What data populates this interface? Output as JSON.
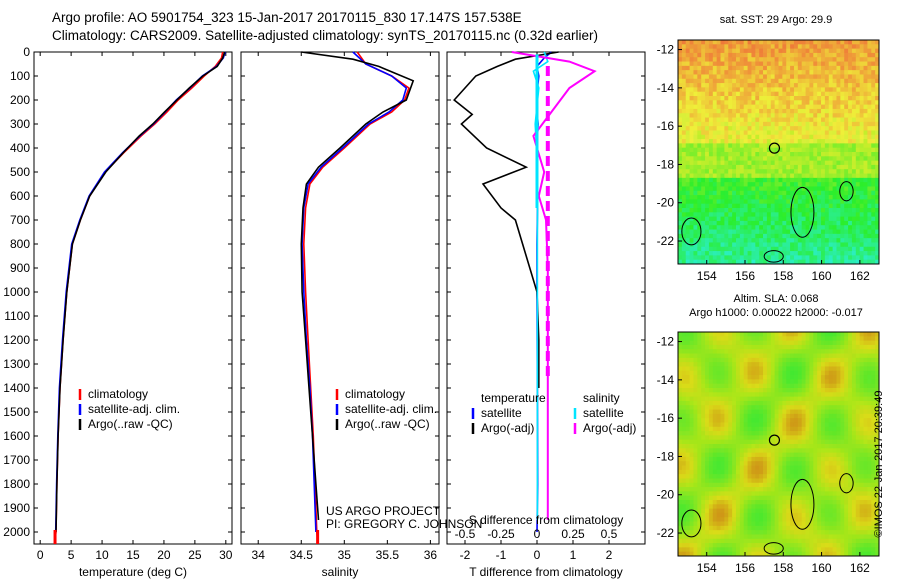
{
  "header": {
    "line1": "Argo profile: AO 5901754_323 15-Jan-2017 20170115_830 17.147S 157.538E",
    "line2": "Climatology: CARS2009. Satellite-adjusted climatology: synTS_20170115.nc (0.32d earlier)"
  },
  "colors": {
    "climatology": "#ff0000",
    "satellite": "#0000ff",
    "argo": "#000000",
    "sat_salinity": "#00e5ff",
    "argo_salinity": "#ff00ff"
  },
  "chart_data": [
    {
      "type": "line",
      "xlabel": "temperature (deg C)",
      "xlim": [
        -1,
        31
      ],
      "ylim": [
        2050,
        0
      ],
      "xticks": [
        0,
        5,
        10,
        15,
        20,
        25,
        30
      ],
      "yticks": [
        0,
        100,
        200,
        300,
        400,
        500,
        600,
        700,
        800,
        900,
        1000,
        1100,
        1200,
        1300,
        1400,
        1500,
        1600,
        1700,
        1800,
        1900,
        2000
      ],
      "legend": [
        "climatology",
        "satellite-adj. clim.",
        "Argo(..raw -QC)"
      ],
      "legend_position": "lower-right",
      "series": [
        {
          "name": "climatology",
          "color": "#ff0000",
          "x": [
            29.5,
            29.3,
            28.3,
            26.5,
            24.5,
            22.3,
            20.5,
            18.5,
            16.3,
            13.5,
            10.5,
            8.0,
            6.5,
            5.2,
            4.3,
            3.7,
            3.2,
            2.9,
            2.7,
            2.55,
            2.4
          ],
          "y": [
            0,
            25,
            60,
            100,
            150,
            200,
            250,
            300,
            350,
            420,
            500,
            600,
            700,
            800,
            1000,
            1200,
            1400,
            1600,
            1800,
            2000,
            2030
          ]
        },
        {
          "name": "satellite-adj. clim.",
          "color": "#0000ff",
          "x": [
            29.9,
            29.6,
            28.5,
            26.2,
            24.2,
            22.0,
            20.2,
            18.3,
            16.1,
            13.3,
            10.4,
            7.9,
            6.4,
            5.1,
            4.2,
            3.6,
            3.1,
            2.85,
            2.65,
            2.5
          ],
          "y": [
            0,
            25,
            60,
            100,
            150,
            200,
            250,
            300,
            350,
            420,
            500,
            600,
            700,
            800,
            1000,
            1200,
            1400,
            1600,
            1800,
            2000
          ]
        },
        {
          "name": "Argo(..raw -QC)",
          "color": "#000000",
          "x": [
            29.8,
            29.5,
            28.6,
            26.3,
            24.1,
            22.1,
            20.1,
            18.2,
            16.0,
            13.4,
            10.6,
            8.0,
            6.5,
            5.2,
            4.3,
            3.7,
            3.2,
            2.9,
            2.7,
            2.55
          ],
          "y": [
            0,
            25,
            60,
            100,
            150,
            200,
            250,
            300,
            350,
            420,
            500,
            600,
            700,
            800,
            1000,
            1200,
            1400,
            1600,
            1800,
            2000
          ]
        }
      ]
    },
    {
      "type": "line",
      "xlabel": "salinity",
      "xlim": [
        33.8,
        36.1
      ],
      "ylim": [
        2050,
        0
      ],
      "xticks": [
        34,
        34.5,
        35,
        35.5,
        36
      ],
      "legend": [
        "climatology",
        "satellite-adj. clim.",
        "Argo(..raw -QC)"
      ],
      "legend_position": "lower-right",
      "annotation": [
        "US ARGO PROJECT",
        "PI: GREGORY C. JOHNSON"
      ],
      "series": [
        {
          "name": "climatology",
          "color": "#ff0000",
          "x": [
            35.15,
            35.25,
            35.55,
            35.75,
            35.7,
            35.55,
            35.3,
            35.0,
            34.75,
            34.6,
            34.55,
            34.53,
            34.55,
            34.58,
            34.61,
            34.64,
            34.66,
            34.68,
            34.69
          ],
          "y": [
            0,
            50,
            100,
            150,
            200,
            250,
            300,
            400,
            480,
            550,
            650,
            800,
            1000,
            1200,
            1400,
            1600,
            1800,
            2000,
            2030
          ]
        },
        {
          "name": "satellite-adj. clim.",
          "color": "#0000ff",
          "x": [
            35.1,
            35.25,
            35.55,
            35.72,
            35.68,
            35.52,
            35.28,
            34.98,
            34.73,
            34.58,
            34.53,
            34.51,
            34.53,
            34.56,
            34.6,
            34.63,
            34.65,
            34.67
          ],
          "y": [
            0,
            50,
            100,
            150,
            200,
            250,
            300,
            400,
            480,
            550,
            650,
            800,
            1000,
            1200,
            1400,
            1600,
            1800,
            2000
          ]
        },
        {
          "name": "Argo(..raw -QC)",
          "color": "#000000",
          "x": [
            34.5,
            35.1,
            35.4,
            35.6,
            35.8,
            35.72,
            35.45,
            35.25,
            34.95,
            34.7,
            34.56,
            34.52,
            34.5,
            34.51,
            34.55,
            34.59,
            34.63,
            34.67,
            34.7
          ],
          "y": [
            0,
            30,
            60,
            90,
            120,
            200,
            250,
            300,
            400,
            480,
            550,
            650,
            800,
            1000,
            1200,
            1400,
            1600,
            1800,
            1950
          ]
        }
      ]
    },
    {
      "type": "line",
      "xlabel": "T difference from climatology",
      "xlabel_top": "S difference from climatology",
      "xlim": [
        -2.5,
        3
      ],
      "ylim": [
        2050,
        0
      ],
      "xticks": [
        -2,
        -1,
        0,
        1,
        2
      ],
      "xticks_salinity": [
        -0.5,
        -0.25,
        0,
        0.25,
        0.5
      ],
      "legend_titles": [
        "temperature",
        "salinity"
      ],
      "legend": [
        "satellite",
        "Argo(-adj)",
        "satellite",
        "Argo(-adj)"
      ],
      "legend_position": "lower-center",
      "series": [
        {
          "name": "satellite",
          "color": "#0000ff",
          "x": [
            0.4,
            0.2,
            0,
            0.05,
            -0.02,
            0.03,
            0,
            0.02,
            0,
            0,
            0.01,
            0.02,
            0
          ],
          "y": [
            0,
            25,
            60,
            100,
            200,
            300,
            400,
            600,
            800,
            1000,
            1400,
            1800,
            2000
          ]
        },
        {
          "name": "Argo(-adj)",
          "color": "#000000",
          "x": [
            0.6,
            -0.6,
            -1.1,
            -1.7,
            -2.0,
            -2.3,
            -1.8,
            -2.1,
            -1.4,
            -0.3,
            -1.5,
            -1.0,
            -0.6,
            -0.4,
            -0.2,
            0.0,
            0.05,
            0.05,
            0.05
          ],
          "y": [
            0,
            30,
            60,
            100,
            150,
            200,
            260,
            300,
            400,
            480,
            550,
            650,
            700,
            800,
            900,
            1000,
            1200,
            1300,
            1400
          ]
        },
        {
          "name": "satellite",
          "color": "#00e5ff",
          "x": [
            0.2,
            0.3,
            -0.1,
            0.05,
            -0.05,
            0.02,
            0.01,
            0.01,
            0.01,
            0.01
          ],
          "y": [
            0,
            40,
            80,
            150,
            300,
            500,
            800,
            1200,
            1600,
            1950
          ]
        },
        {
          "name": "Argo(-adj)",
          "color": "#ff00ff",
          "x": [
            -0.7,
            0.9,
            1.6,
            0.9,
            0.4,
            -0.1,
            0.2,
            0.05,
            0.25,
            0.3,
            0.3,
            0.3,
            0.3
          ],
          "y": [
            0,
            40,
            80,
            150,
            250,
            350,
            500,
            600,
            700,
            900,
            1300,
            1700,
            1950
          ]
        }
      ]
    },
    {
      "type": "heatmap",
      "title": "sat. SST: 29 Argo: 29.9",
      "xticks": [
        154,
        156,
        158,
        160,
        162
      ],
      "yticks": [
        -12,
        -14,
        -16,
        -18,
        -20,
        -22
      ],
      "xlim": [
        152.5,
        163
      ],
      "ylim": [
        -23.2,
        -11.5
      ],
      "marker": {
        "lon": 157.538,
        "lat": -17.147
      }
    },
    {
      "type": "heatmap",
      "title": "Altim. SLA: 0.068",
      "subtitle": "Argo h1000: 0.00022 h2000: -0.017",
      "xticks": [
        154,
        156,
        158,
        160,
        162
      ],
      "yticks": [
        -12,
        -14,
        -16,
        -18,
        -20,
        -22
      ],
      "xlim": [
        152.5,
        163
      ],
      "ylim": [
        -23.2,
        -11.5
      ],
      "marker": {
        "lon": 157.538,
        "lat": -17.147
      }
    }
  ],
  "credit": "©IMOS 22-Jan-2017 20:39:49"
}
